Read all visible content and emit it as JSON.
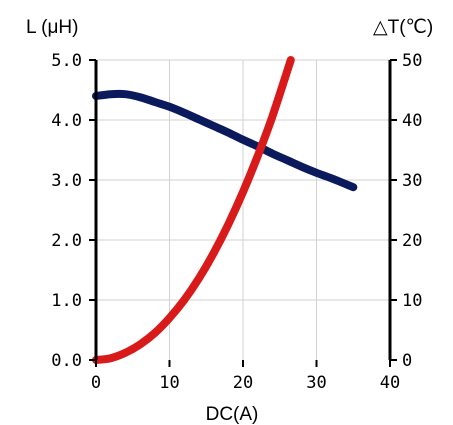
{
  "chart_data": {
    "type": "line",
    "title": "",
    "xlabel": "DC(A)",
    "ylabel_left": "L (μH)",
    "ylabel_right": "△T(℃)",
    "xlim": [
      0,
      40
    ],
    "ylim_left": [
      0,
      5
    ],
    "ylim_right": [
      0,
      50
    ],
    "x_ticks": [
      "0",
      "10",
      "20",
      "30",
      "40"
    ],
    "y_ticks_left": [
      "0.0",
      "1.0",
      "2.0",
      "3.0",
      "4.0",
      "5.0"
    ],
    "y_ticks_right": [
      "0",
      "10",
      "20",
      "30",
      "40",
      "50"
    ],
    "grid": true,
    "series": [
      {
        "axis": "left",
        "color": "#0a1a5c",
        "x": [
          0,
          2,
          4,
          6,
          8,
          10,
          12,
          14,
          16,
          18,
          20,
          22,
          24,
          26,
          28,
          30,
          32,
          35
        ],
        "y": [
          4.4,
          4.43,
          4.43,
          4.38,
          4.3,
          4.22,
          4.12,
          4.01,
          3.9,
          3.79,
          3.67,
          3.56,
          3.44,
          3.33,
          3.22,
          3.12,
          3.03,
          2.88
        ]
      },
      {
        "axis": "right",
        "color": "#d91a1a",
        "x": [
          0,
          2,
          4,
          6,
          8,
          10,
          12,
          14,
          16,
          18,
          20,
          22,
          24,
          26.5
        ],
        "y": [
          0,
          0.3,
          1.2,
          2.6,
          4.5,
          7,
          10,
          13.6,
          17.8,
          22.6,
          28,
          34,
          40.6,
          50
        ]
      }
    ]
  }
}
